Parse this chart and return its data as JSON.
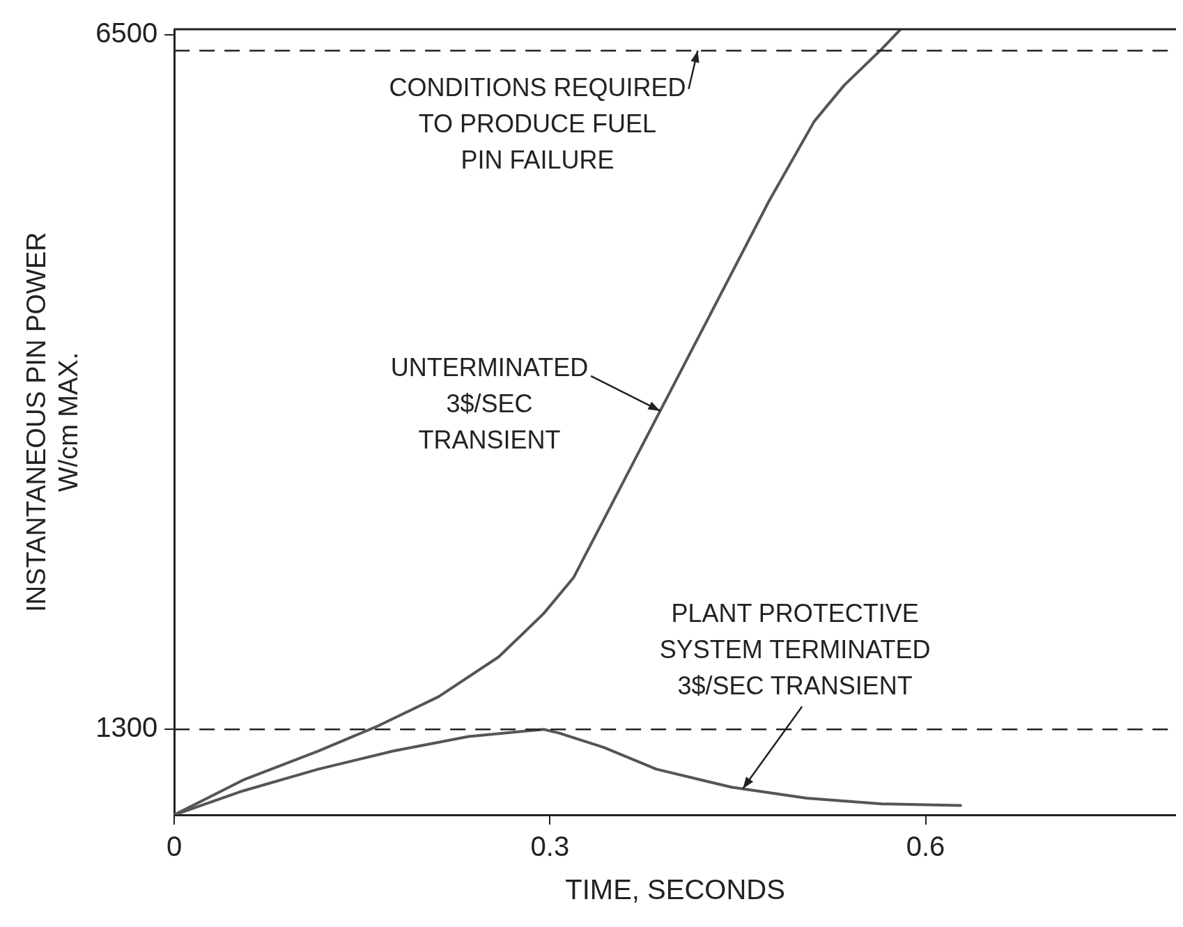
{
  "chart_data": {
    "type": "line",
    "xlabel": "TIME, SECONDS",
    "ylabel": "INSTANTANEOUS PIN POWER\nW/cm MAX.",
    "xlim": [
      0,
      0.8
    ],
    "xticks": [
      0,
      0.3,
      0.6
    ],
    "ylim": [
      660,
      6540
    ],
    "yticks": [
      1300,
      6500
    ],
    "grid": false,
    "legend": false,
    "marker": "none",
    "line_style": "solid",
    "series": [
      {
        "color": "#555555",
        "x": [
          0,
          0.055,
          0.115,
          0.163,
          0.211,
          0.259,
          0.295,
          0.319,
          0.343,
          0.373,
          0.403,
          0.439,
          0.475,
          0.511,
          0.535,
          0.565,
          0.58
        ],
        "values": [
          660,
          921,
          1138,
          1327,
          1544,
          1842,
          2167,
          2438,
          2871,
          3413,
          3954,
          4604,
          5255,
          5850,
          6121,
          6392,
          6540
        ]
      },
      {
        "color": "#555555",
        "x": [
          0,
          0.055,
          0.115,
          0.175,
          0.235,
          0.295,
          0.307,
          0.343,
          0.385,
          0.445,
          0.505,
          0.565,
          0.628
        ],
        "values": [
          660,
          840,
          1002,
          1138,
          1246,
          1300,
          1273,
          1165,
          1002,
          867,
          785,
          742,
          731
        ]
      }
    ],
    "ref_lines": [
      {
        "axis": "y",
        "value": 6380,
        "color": "#222222",
        "line_style": "dashed"
      },
      {
        "axis": "y",
        "value": 1300,
        "color": "#222222",
        "line_style": "dashed"
      }
    ],
    "annotations": [
      {
        "text": "CONDITIONS REQUIRED\nTO PRODUCE FUEL\nPIN FAILURE",
        "x": 0.418,
        "y": 6380
      },
      {
        "text": "UNTERMINATED\n3$/SEC\nTRANSIENT",
        "x": 0.388,
        "y": 3684
      },
      {
        "text": "PLANT PROTECTIVE\nSYSTEM TERMINATED\n3$/SEC TRANSIENT",
        "x": 0.454,
        "y": 855
      }
    ]
  }
}
